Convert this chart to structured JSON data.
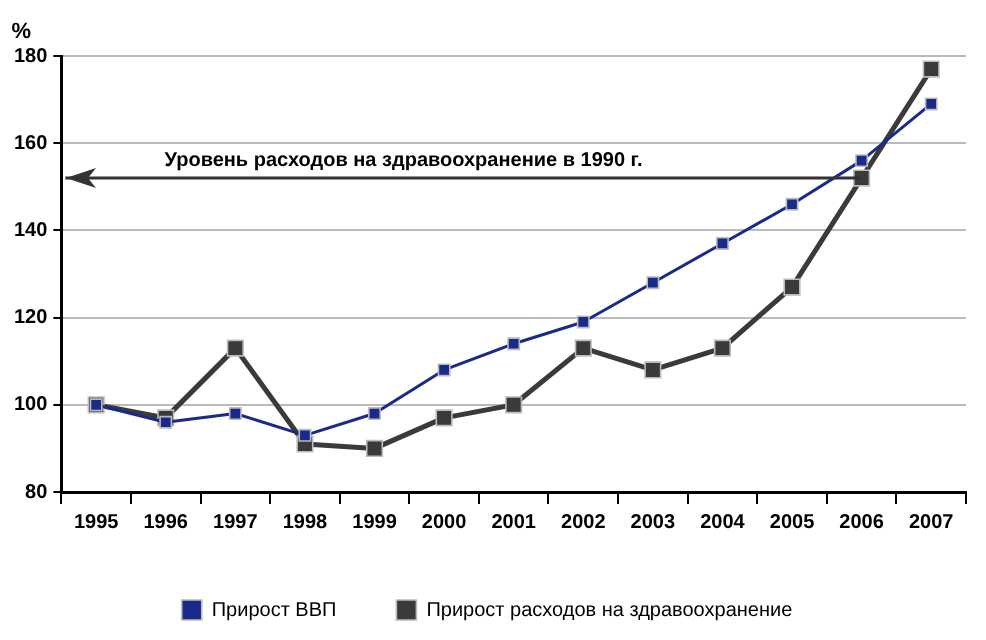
{
  "chart_data": {
    "type": "line",
    "ylabel": "%",
    "categories": [
      "1995",
      "1996",
      "1997",
      "1998",
      "1999",
      "2000",
      "2001",
      "2002",
      "2003",
      "2004",
      "2005",
      "2006",
      "2007"
    ],
    "series": [
      {
        "name": "Прирост ВВП",
        "color": "#1a2a8a",
        "values": [
          100,
          96,
          98,
          93,
          98,
          108,
          114,
          119,
          128,
          137,
          146,
          156,
          169
        ]
      },
      {
        "name": "Прирост расходов на здравоохранение",
        "color": "#3a3a3a",
        "values": [
          100,
          97,
          113,
          91,
          90,
          97,
          100,
          113,
          108,
          113,
          127,
          152,
          177
        ]
      }
    ],
    "ylim": [
      80,
      180
    ],
    "yticks": [
      80,
      100,
      120,
      140,
      160,
      180
    ],
    "grid": "y",
    "legend": "bottom",
    "marker": "square",
    "line_style": "solid",
    "ref_lines": [
      {
        "axis": "y",
        "value": 152,
        "label": "Уровень расходов на здравоохранение в 1990 г.",
        "color": "#333333"
      }
    ]
  }
}
